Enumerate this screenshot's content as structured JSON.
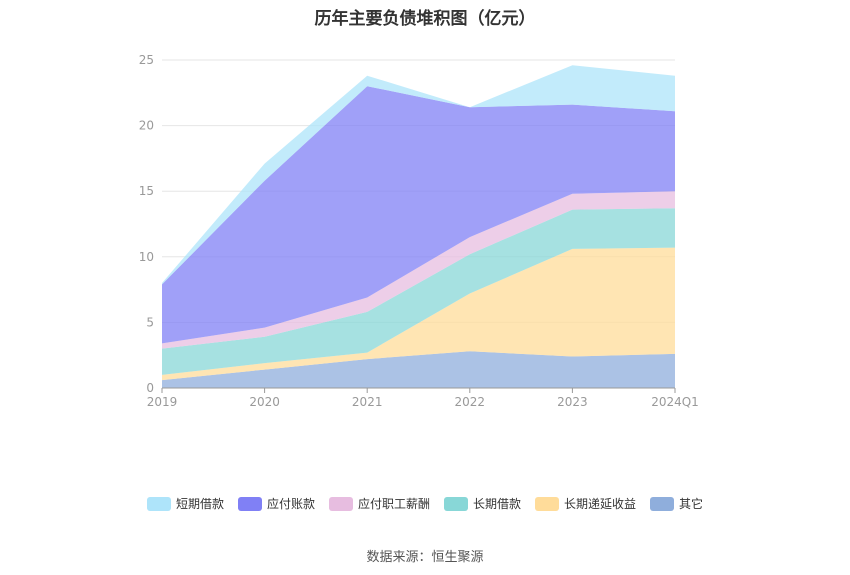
{
  "chart_data": {
    "type": "area",
    "stacked": true,
    "title": "历年主要负债堆积图（亿元）",
    "categories": [
      "2019",
      "2020",
      "2021",
      "2022",
      "2023",
      "2024Q1"
    ],
    "ylim": [
      0,
      25
    ],
    "yticks": [
      0,
      5,
      10,
      15,
      20,
      25
    ],
    "grid": true,
    "legend_position": "bottom",
    "series": [
      {
        "name": "其它",
        "color": "#8faedc",
        "values": [
          0.6,
          1.4,
          2.2,
          2.8,
          2.4,
          2.6
        ]
      },
      {
        "name": "长期递延收益",
        "color": "#ffdc9a",
        "values": [
          0.4,
          0.5,
          0.5,
          4.4,
          8.2,
          8.1
        ]
      },
      {
        "name": "长期借款",
        "color": "#88d7d7",
        "values": [
          2.0,
          2.0,
          3.1,
          3.0,
          3.0,
          3.0
        ]
      },
      {
        "name": "应付职工薪酬",
        "color": "#e7bde0",
        "values": [
          0.4,
          0.7,
          1.1,
          1.3,
          1.2,
          1.3
        ]
      },
      {
        "name": "应付账款",
        "color": "#8080f5",
        "values": [
          4.5,
          11.2,
          16.1,
          9.9,
          6.8,
          6.1
        ]
      },
      {
        "name": "短期借款",
        "color": "#aee4fa",
        "values": [
          0.1,
          1.3,
          0.8,
          0.0,
          3.0,
          2.7
        ]
      }
    ]
  },
  "legend_order": [
    "短期借款",
    "应付账款",
    "应付职工薪酬",
    "长期借款",
    "长期递延收益",
    "其它"
  ],
  "source": "数据来源：恒生聚源"
}
